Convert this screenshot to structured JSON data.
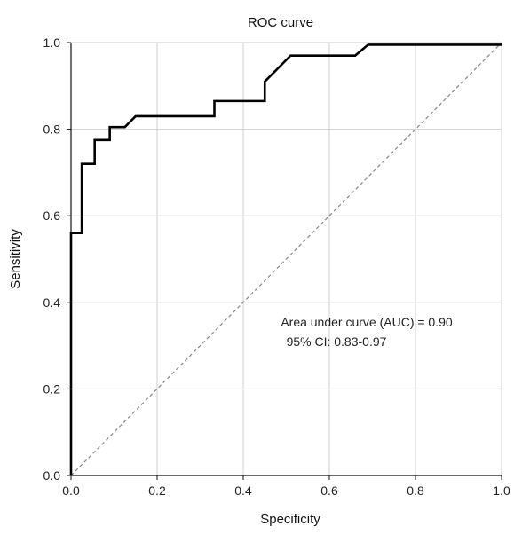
{
  "chart_data": {
    "type": "line",
    "title": "ROC curve",
    "xlabel": "Specificity",
    "ylabel": "Sensitivity",
    "xlim": [
      0,
      1
    ],
    "ylim": [
      0,
      1
    ],
    "x_ticks": [
      "0.0",
      "0.2",
      "0.4",
      "0.6",
      "0.8",
      "1.0"
    ],
    "y_ticks": [
      "0.0",
      "0.2",
      "0.4",
      "0.6",
      "0.8",
      "1.0"
    ],
    "grid": true,
    "series": [
      {
        "color": "#000000",
        "x": [
          0.0,
          0.0,
          0.025,
          0.025,
          0.055,
          0.055,
          0.09,
          0.09,
          0.125,
          0.15,
          0.333,
          0.333,
          0.45,
          0.45,
          0.51,
          0.66,
          0.69,
          1.0
        ],
        "y": [
          0.0,
          0.56,
          0.56,
          0.72,
          0.72,
          0.775,
          0.775,
          0.805,
          0.805,
          0.83,
          0.83,
          0.865,
          0.865,
          0.91,
          0.97,
          0.97,
          0.995,
          0.995
        ]
      }
    ],
    "reference_line": {
      "x": [
        0,
        1
      ],
      "y": [
        0,
        1
      ],
      "color": "#888888",
      "style": "dashed"
    },
    "annotations": [
      "Area under curve (AUC) = 0.90",
      "95% CI: 0.83-0.97"
    ]
  }
}
